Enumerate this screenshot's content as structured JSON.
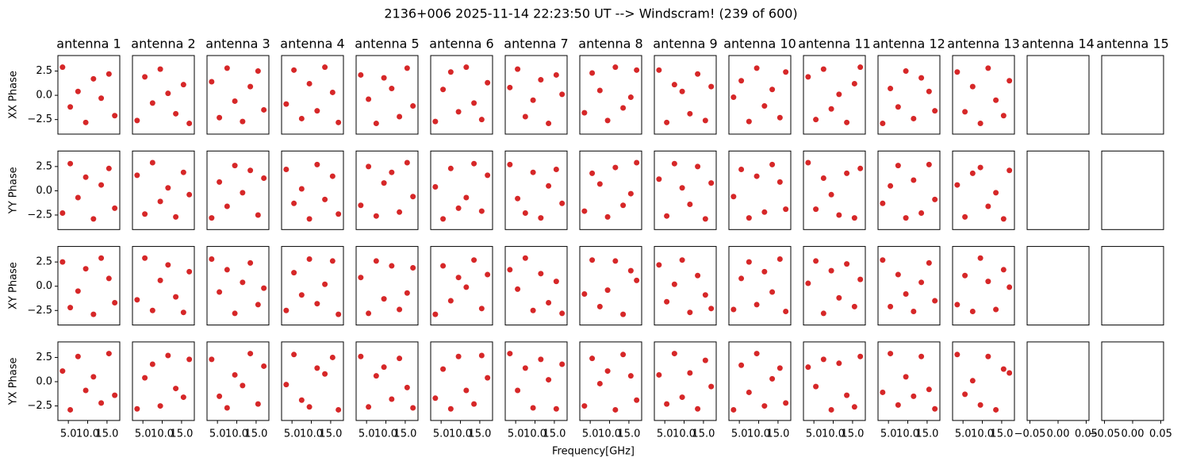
{
  "chart_data": {
    "type": "scatter-grid",
    "title": "2136+006 2025-11-14 22:23:50 UT --> Windscram! (239 of 600)",
    "xlabel": "Frequency[GHz]",
    "row_labels": [
      "XX Phase",
      "YY Phase",
      "XY Phase",
      "YX Phase"
    ],
    "columns": [
      "antenna 1",
      "antenna 2",
      "antenna 3",
      "antenna 4",
      "antenna 5",
      "antenna 6",
      "antenna 7",
      "antenna 8",
      "antenna 9",
      "antenna 10",
      "antenna 11",
      "antenna 12",
      "antenna 13",
      "antenna 14",
      "antenna 15"
    ],
    "color": "#d62728",
    "x": [
      3.5,
      5.5,
      7.5,
      9.5,
      11.5,
      13.5,
      15.5,
      17.0
    ],
    "xlim": [
      2.3,
      18.3
    ],
    "xticks": [
      {
        "value": 5,
        "label": "5.0"
      },
      {
        "value": 10,
        "label": "10.0"
      },
      {
        "value": 15,
        "label": "15.0"
      }
    ],
    "empty_xlim": [
      -0.055,
      0.055
    ],
    "empty_xticks": [
      {
        "value": -0.05,
        "label": "−0.05"
      },
      {
        "value": 0,
        "label": "0.00"
      },
      {
        "value": 0.05,
        "label": "0.05"
      }
    ],
    "ylim": [
      -4.0,
      4.1
    ],
    "yticks": [
      {
        "value": -2.5,
        "label": "−2.5"
      },
      {
        "value": 0,
        "label": "0.0"
      },
      {
        "value": 2.5,
        "label": "2.5"
      }
    ],
    "panels": [
      [
        [
          2.9,
          -1.2,
          0.4,
          -2.8,
          1.7,
          -0.3,
          2.2,
          -2.1
        ],
        [
          -2.6,
          1.9,
          -0.8,
          2.7,
          0.2,
          -1.9,
          1.1,
          -2.9
        ],
        [
          1.4,
          -2.3,
          2.8,
          -0.6,
          -2.7,
          0.9,
          2.5,
          -1.5
        ],
        [
          -0.9,
          2.6,
          -2.4,
          1.2,
          -1.6,
          2.9,
          0.3,
          -2.8
        ],
        [
          2.1,
          -0.4,
          -2.9,
          1.8,
          0.7,
          -2.2,
          2.8,
          -1.1
        ],
        [
          -2.7,
          0.6,
          2.4,
          -1.7,
          2.9,
          -0.8,
          -2.5,
          1.3
        ],
        [
          0.8,
          2.7,
          -2.2,
          -0.5,
          1.6,
          -2.9,
          2.1,
          0.1
        ],
        [
          -1.8,
          2.3,
          0.5,
          -2.6,
          2.9,
          -1.3,
          -0.2,
          2.6
        ],
        [
          2.6,
          -2.8,
          1.1,
          0.4,
          -1.9,
          2.2,
          -2.6,
          0.9
        ],
        [
          -0.2,
          1.5,
          -2.7,
          2.8,
          -1.1,
          0.6,
          -2.3,
          2.4
        ],
        [
          1.9,
          -2.5,
          2.7,
          -1.4,
          0.1,
          -2.8,
          1.2,
          2.9
        ],
        [
          -2.9,
          0.7,
          -1.2,
          2.5,
          -2.4,
          1.8,
          0.4,
          -1.6
        ],
        [
          2.4,
          -1.7,
          0.9,
          -2.9,
          2.8,
          -0.5,
          -2.1,
          1.5
        ],
        [],
        []
      ],
      [
        [
          -2.3,
          2.8,
          -0.7,
          1.4,
          -2.9,
          0.6,
          2.3,
          -1.8
        ],
        [
          1.6,
          -2.4,
          2.9,
          -1.1,
          0.3,
          -2.7,
          1.9,
          -0.4
        ],
        [
          -2.8,
          0.9,
          -1.6,
          2.6,
          -0.2,
          2.1,
          -2.5,
          1.3
        ],
        [
          2.2,
          -1.3,
          0.2,
          -2.9,
          2.7,
          -0.9,
          1.5,
          -2.4
        ],
        [
          -1.5,
          2.5,
          -2.6,
          0.8,
          1.9,
          -2.2,
          2.9,
          -0.6
        ],
        [
          0.4,
          -2.9,
          2.3,
          -1.8,
          -0.7,
          2.8,
          -2.1,
          1.6
        ],
        [
          2.7,
          -0.8,
          -2.3,
          1.9,
          -2.8,
          0.5,
          2.2,
          -1.3
        ],
        [
          -2.1,
          1.8,
          0.7,
          -2.7,
          2.4,
          -1.5,
          -0.3,
          2.9
        ],
        [
          1.2,
          -2.6,
          2.8,
          0.3,
          -1.4,
          2.5,
          -2.9,
          0.8
        ],
        [
          -0.6,
          2.2,
          -2.8,
          1.5,
          -2.2,
          2.7,
          0.9,
          -1.9
        ],
        [
          2.9,
          -1.9,
          1.3,
          -0.4,
          -2.5,
          1.8,
          -2.8,
          2.3
        ],
        [
          -1.3,
          0.5,
          2.6,
          -2.8,
          1.1,
          -2.3,
          2.7,
          -0.9
        ],
        [
          0.6,
          -2.7,
          1.8,
          2.4,
          -1.6,
          -0.2,
          -2.9,
          2.1
        ],
        [],
        []
      ],
      [
        [
          2.5,
          -2.2,
          -0.5,
          1.8,
          -2.9,
          2.9,
          0.8,
          -1.7
        ],
        [
          -1.4,
          2.9,
          -2.5,
          0.6,
          2.2,
          -1.1,
          -2.7,
          1.5
        ],
        [
          2.8,
          -0.6,
          1.7,
          -2.8,
          0.4,
          2.4,
          -1.9,
          -0.2
        ],
        [
          -2.5,
          1.4,
          -0.9,
          2.8,
          -1.8,
          0.2,
          2.6,
          -2.9
        ],
        [
          0.9,
          -2.8,
          2.6,
          -1.3,
          2.1,
          -2.4,
          -0.7,
          1.9
        ],
        [
          -2.9,
          2.1,
          -1.5,
          0.9,
          -0.1,
          2.7,
          -2.3,
          1.2
        ],
        [
          1.7,
          -0.3,
          2.9,
          -2.5,
          1.3,
          -1.7,
          0.5,
          -2.8
        ],
        [
          -0.8,
          2.7,
          -2.1,
          -0.4,
          2.6,
          -2.9,
          1.6,
          0.6
        ],
        [
          2.2,
          -1.6,
          0.2,
          2.7,
          -2.7,
          1.1,
          -0.9,
          -2.3
        ],
        [
          -2.4,
          0.8,
          2.5,
          -1.9,
          1.5,
          -0.6,
          2.8,
          -2.6
        ],
        [
          0.3,
          2.6,
          -2.8,
          1.6,
          -1.2,
          2.3,
          -2.1,
          0.7
        ],
        [
          2.7,
          -2.1,
          1.2,
          -0.8,
          -2.6,
          0.4,
          2.4,
          -1.5
        ],
        [
          -1.9,
          1.1,
          -2.6,
          2.9,
          0.5,
          -2.4,
          1.7,
          -0.1
        ],
        [],
        []
      ],
      [
        [
          1.1,
          -2.9,
          2.6,
          -0.9,
          0.5,
          -2.2,
          2.9,
          -1.4
        ],
        [
          -2.8,
          0.4,
          1.8,
          -2.5,
          2.7,
          -0.7,
          -1.6,
          2.3
        ],
        [
          2.3,
          -1.5,
          -2.7,
          0.7,
          -0.4,
          2.9,
          -2.3,
          1.6
        ],
        [
          -0.3,
          2.8,
          -1.9,
          -2.6,
          1.4,
          0.8,
          2.5,
          -2.9
        ],
        [
          2.6,
          -2.6,
          0.6,
          1.5,
          -1.8,
          2.4,
          -0.6,
          -2.7
        ],
        [
          -1.7,
          1.3,
          -2.8,
          2.6,
          -0.9,
          -2.3,
          2.7,
          0.4
        ],
        [
          2.9,
          -0.9,
          1.4,
          -2.7,
          2.3,
          0.2,
          -2.8,
          1.8
        ],
        [
          -2.5,
          2.4,
          -0.2,
          1.1,
          -2.9,
          2.8,
          0.6,
          -1.9
        ],
        [
          0.7,
          -2.3,
          2.9,
          -1.6,
          0.9,
          -2.8,
          2.2,
          -0.5
        ],
        [
          -2.9,
          1.7,
          -1.1,
          2.9,
          -2.5,
          0.3,
          1.4,
          -2.2
        ],
        [
          1.5,
          -0.5,
          2.3,
          -2.9,
          1.9,
          -1.4,
          -2.6,
          2.6
        ],
        [
          -1.1,
          2.9,
          -2.4,
          0.5,
          -1.5,
          2.6,
          -0.8,
          -2.8
        ],
        [
          2.8,
          -1.3,
          0.1,
          -2.4,
          2.6,
          -2.9,
          1.3,
          0.9
        ],
        [],
        []
      ]
    ]
  }
}
